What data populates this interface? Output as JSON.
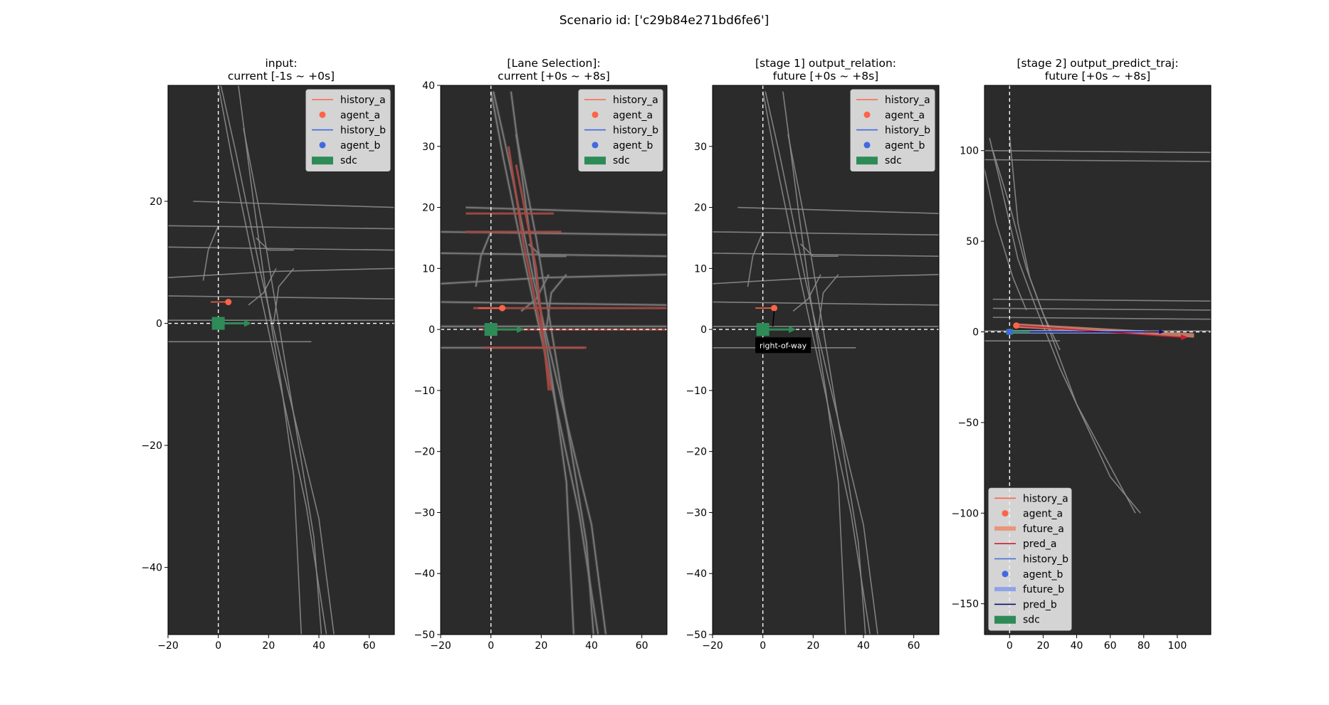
{
  "figure_title": "Scenario id: ['c29b84e271bd6fe6']",
  "colors": {
    "background": "#2b2b2b",
    "lane": "#8a8a8a",
    "selected_lane": "#a84a44",
    "history_a": "#ff6347",
    "agent_a": "#ff6347",
    "history_b": "#4169e1",
    "agent_b": "#4169e1",
    "future_a": "#e9967a",
    "future_b": "#8ea3e8",
    "pred_a": "#c81e32",
    "pred_b": "#0b0b70",
    "sdc": "#2e8b57"
  },
  "chart_data": [
    {
      "type": "line",
      "title_line1": "input:",
      "title_line2": "current [-1s ~ +0s]",
      "xlim": [
        -20,
        70
      ],
      "ylim": [
        -51,
        39
      ],
      "xticks": [
        -20,
        0,
        20,
        40,
        60
      ],
      "yticks": [
        -40,
        -20,
        0,
        20
      ],
      "legend": [
        "history_a",
        "agent_a",
        "history_b",
        "agent_b",
        "sdc"
      ],
      "legend_position": "top-right",
      "agent_a": [
        4,
        3.5
      ],
      "history_a": [
        [
          -3,
          3.5
        ],
        [
          4,
          3.5
        ]
      ],
      "sdc": [
        0,
        0
      ],
      "sdc_heading": [
        12,
        0
      ]
    },
    {
      "type": "line",
      "title_line1": "[Lane Selection]:",
      "title_line2": "current [+0s ~ +8s]",
      "xlim": [
        -20,
        70
      ],
      "ylim": [
        -50,
        40
      ],
      "xticks": [
        -20,
        0,
        20,
        40,
        60
      ],
      "yticks": [
        -50,
        -40,
        -30,
        -20,
        -10,
        0,
        10,
        20,
        30,
        40
      ],
      "legend": [
        "history_a",
        "agent_a",
        "history_b",
        "agent_b",
        "sdc"
      ],
      "legend_position": "top-right",
      "agent_a": [
        4.5,
        3.5
      ],
      "history_a": [
        [
          -5,
          3.5
        ],
        [
          4.5,
          3.5
        ]
      ],
      "sdc": [
        0,
        0
      ],
      "sdc_heading": [
        12,
        0
      ]
    },
    {
      "type": "line",
      "title_line1": "[stage 1] output_relation:",
      "title_line2": "future [+0s ~ +8s]",
      "xlim": [
        -20,
        70
      ],
      "ylim": [
        -50,
        40
      ],
      "xticks": [
        -20,
        0,
        20,
        40,
        60
      ],
      "yticks": [
        -50,
        -40,
        -30,
        -20,
        -10,
        0,
        10,
        20,
        30
      ],
      "legend": [
        "history_a",
        "agent_a",
        "history_b",
        "agent_b",
        "sdc"
      ],
      "legend_position": "top-right",
      "annotation": "right-of-way",
      "agent_a": [
        4.5,
        3.5
      ],
      "history_a": [
        [
          -3,
          3.5
        ],
        [
          4.5,
          3.5
        ]
      ],
      "sdc": [
        0,
        0
      ],
      "sdc_heading": [
        12,
        0
      ]
    },
    {
      "type": "line",
      "title_line1": "[stage 2] output_predict_traj:",
      "title_line2": "future [+0s ~ +8s]",
      "xlim": [
        -15,
        120
      ],
      "ylim": [
        -167,
        136
      ],
      "xticks": [
        0,
        20,
        40,
        60,
        80,
        100
      ],
      "yticks": [
        -150,
        -100,
        -50,
        0,
        50,
        100
      ],
      "legend": [
        "history_a",
        "agent_a",
        "future_a",
        "pred_a",
        "history_b",
        "agent_b",
        "future_b",
        "pred_b",
        "sdc"
      ],
      "legend_position": "lower-left",
      "agent_a": [
        4,
        3.5
      ],
      "agent_b": [
        0,
        0
      ],
      "future_a": [
        [
          4,
          3.5
        ],
        [
          110,
          -2
        ]
      ],
      "pred_a": [
        [
          4,
          3.5
        ],
        [
          103,
          -3
        ]
      ],
      "future_b": [
        [
          0,
          0
        ],
        [
          80,
          0
        ]
      ],
      "pred_b": [
        [
          0,
          0
        ],
        [
          90,
          0
        ]
      ],
      "sdc": [
        0,
        0
      ],
      "sdc_heading": [
        12,
        0
      ]
    }
  ]
}
